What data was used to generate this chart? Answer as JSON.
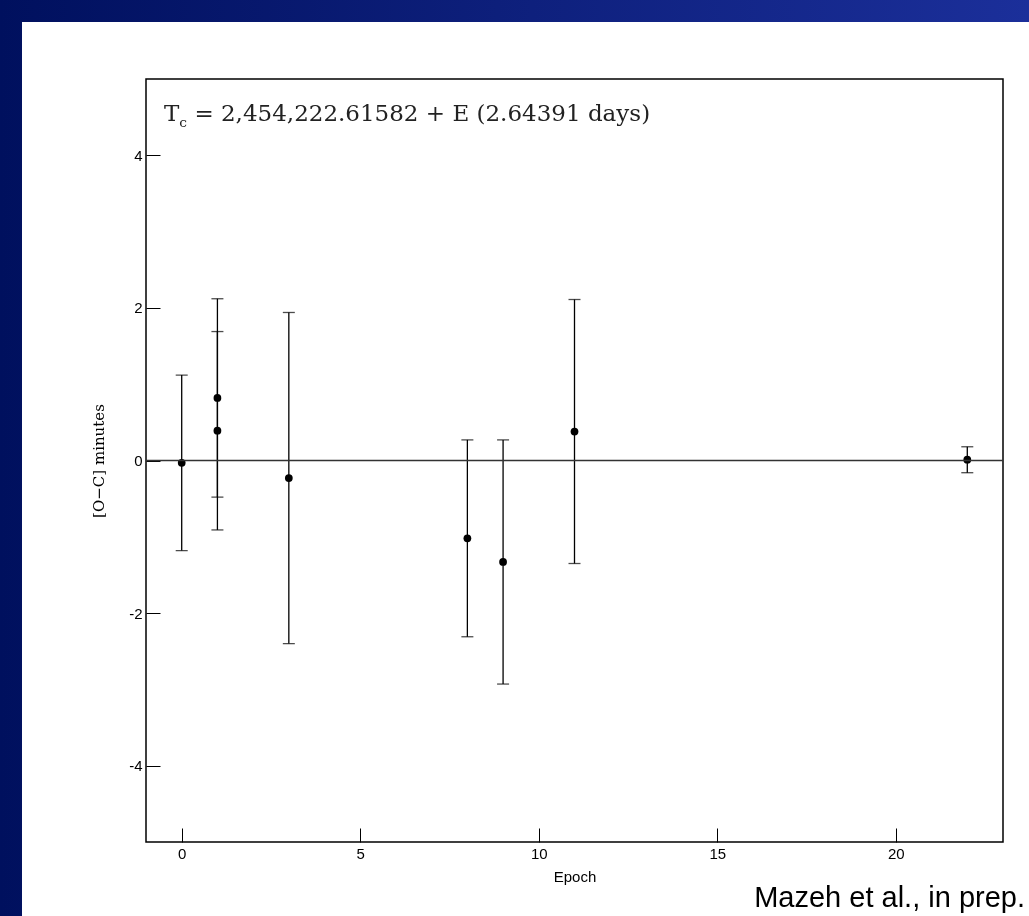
{
  "chart_data": {
    "type": "scatter",
    "xlabel": "Epoch",
    "ylabel": "[O−C] minutes",
    "x": [
      0,
      1,
      1,
      3,
      8,
      9,
      11,
      22
    ],
    "values": [
      -0.03,
      0.82,
      0.39,
      -0.23,
      -1.02,
      -1.33,
      0.38,
      0.01
    ],
    "errors": [
      1.15,
      1.3,
      1.3,
      2.17,
      1.29,
      1.6,
      1.73,
      0.17
    ],
    "color": "#000000",
    "marker": "circle",
    "xlim": [
      -1,
      23
    ],
    "xticks": [
      0,
      5,
      10,
      15,
      20
    ],
    "ylim": [
      -5,
      5
    ],
    "yticks": [
      -4,
      -2,
      0,
      2,
      4
    ],
    "ref_lines": [
      {
        "axis": "y",
        "value": 0
      }
    ],
    "annotations": [
      "T$_{c}$ = 2,454,222.61582 + E (2.64391 days)",
      "Mazeh et al., in prep."
    ]
  }
}
